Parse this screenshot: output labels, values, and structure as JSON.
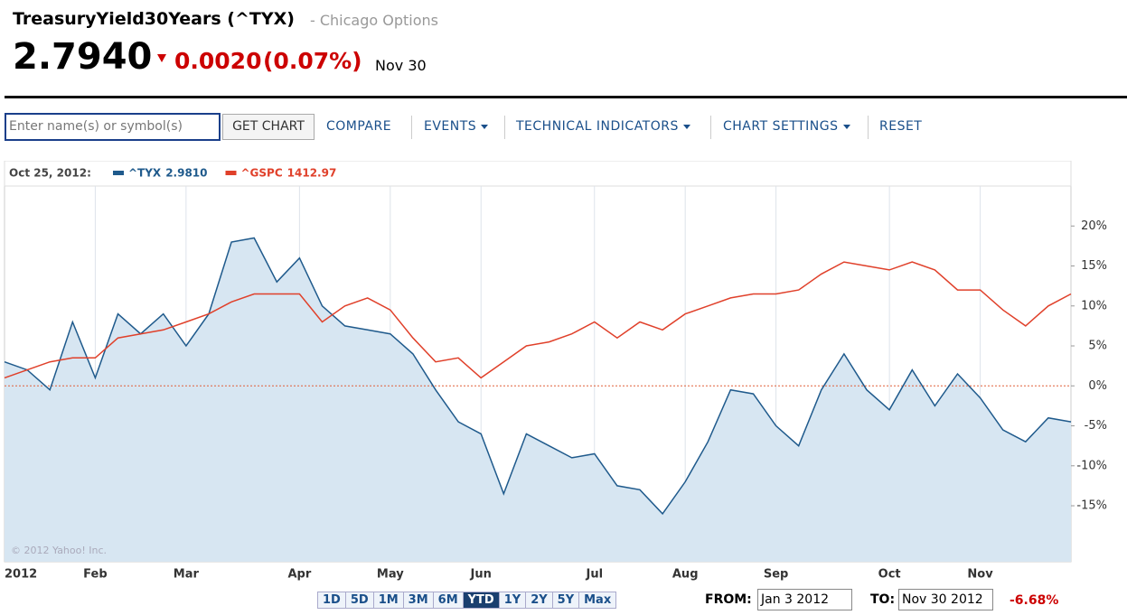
{
  "header": {
    "title": "TreasuryYield30Years (^TYX)",
    "source": "- Chicago Options",
    "price": "2.7940",
    "change": "0.0020",
    "change_pct": "(0.07%)",
    "date": "Nov 30"
  },
  "toolbar": {
    "input_placeholder": "Enter name(s) or symbol(s)",
    "get_chart": "GET CHART",
    "items": [
      "COMPARE",
      "EVENTS",
      "TECHNICAL INDICATORS",
      "CHART SETTINGS",
      "RESET"
    ]
  },
  "legend": {
    "date": "Oct 25, 2012:",
    "entries": [
      {
        "name": "^TYX",
        "value": "2.9810"
      },
      {
        "name": "^GSPC",
        "value": "1412.97"
      }
    ]
  },
  "copyright": "© 2012 Yahoo! Inc.",
  "ranges": [
    "1D",
    "5D",
    "1M",
    "3M",
    "6M",
    "YTD",
    "1Y",
    "2Y",
    "5Y",
    "Max"
  ],
  "active_range": "YTD",
  "from_label": "FROM:",
  "from_value": "Jan 3 2012",
  "to_label": "TO:",
  "to_value": "Nov 30 2012",
  "period_change": "-6.68%",
  "chart_data": {
    "type": "line",
    "categories": [
      "2012",
      null,
      null,
      null,
      "Feb",
      null,
      null,
      null,
      "Mar",
      null,
      null,
      null,
      null,
      "Apr",
      null,
      null,
      null,
      "May",
      null,
      null,
      null,
      "Jun",
      null,
      null,
      null,
      null,
      "Jul",
      null,
      null,
      null,
      "Aug",
      null,
      null,
      null,
      "Sep",
      null,
      null,
      null,
      null,
      "Oct",
      null,
      null,
      null,
      "Nov",
      null,
      null,
      null,
      null
    ],
    "series": [
      {
        "name": "^TYX",
        "color": "#1f5a8c",
        "fill": "#d7e6f2",
        "values": [
          3,
          2,
          -0.5,
          8,
          1,
          9,
          6.5,
          9,
          5,
          9,
          18,
          18.5,
          13,
          16,
          10,
          7.5,
          7,
          6.5,
          4,
          -0.5,
          -4.5,
          -6,
          -13.5,
          -6,
          -7.5,
          -9,
          -8.5,
          -12.5,
          -13,
          -16,
          -12,
          -7,
          -0.5,
          -1,
          -5,
          -7.5,
          -0.5,
          4,
          -0.5,
          -3,
          2,
          -2.5,
          1.5,
          -1.5,
          -5.5,
          -7,
          -4,
          -4.5
        ]
      },
      {
        "name": "^GSPC",
        "color": "#e0402a",
        "values": [
          1,
          2,
          3,
          3.5,
          3.5,
          6,
          6.5,
          7,
          8,
          9,
          10.5,
          11.5,
          11.5,
          11.5,
          8,
          10,
          11,
          9.5,
          6,
          3,
          3.5,
          1,
          3,
          5,
          5.5,
          6.5,
          8,
          6,
          8,
          7,
          9,
          10,
          11,
          11.5,
          11.5,
          12,
          14,
          15.5,
          15,
          14.5,
          15.5,
          14.5,
          12,
          12,
          9.5,
          7.5,
          10,
          11.5
        ]
      }
    ],
    "ylim": [
      -22,
      25
    ],
    "yticks": [
      {
        "value": -15,
        "label": "-15%"
      },
      {
        "value": -10,
        "label": "-10%"
      },
      {
        "value": -5,
        "label": "-5%"
      },
      {
        "value": 0,
        "label": "0%"
      },
      {
        "value": 5,
        "label": "5%"
      },
      {
        "value": 10,
        "label": "10%"
      },
      {
        "value": 15,
        "label": "15%"
      },
      {
        "value": 20,
        "label": "20%"
      }
    ],
    "reference_line": 0,
    "grid": true
  }
}
